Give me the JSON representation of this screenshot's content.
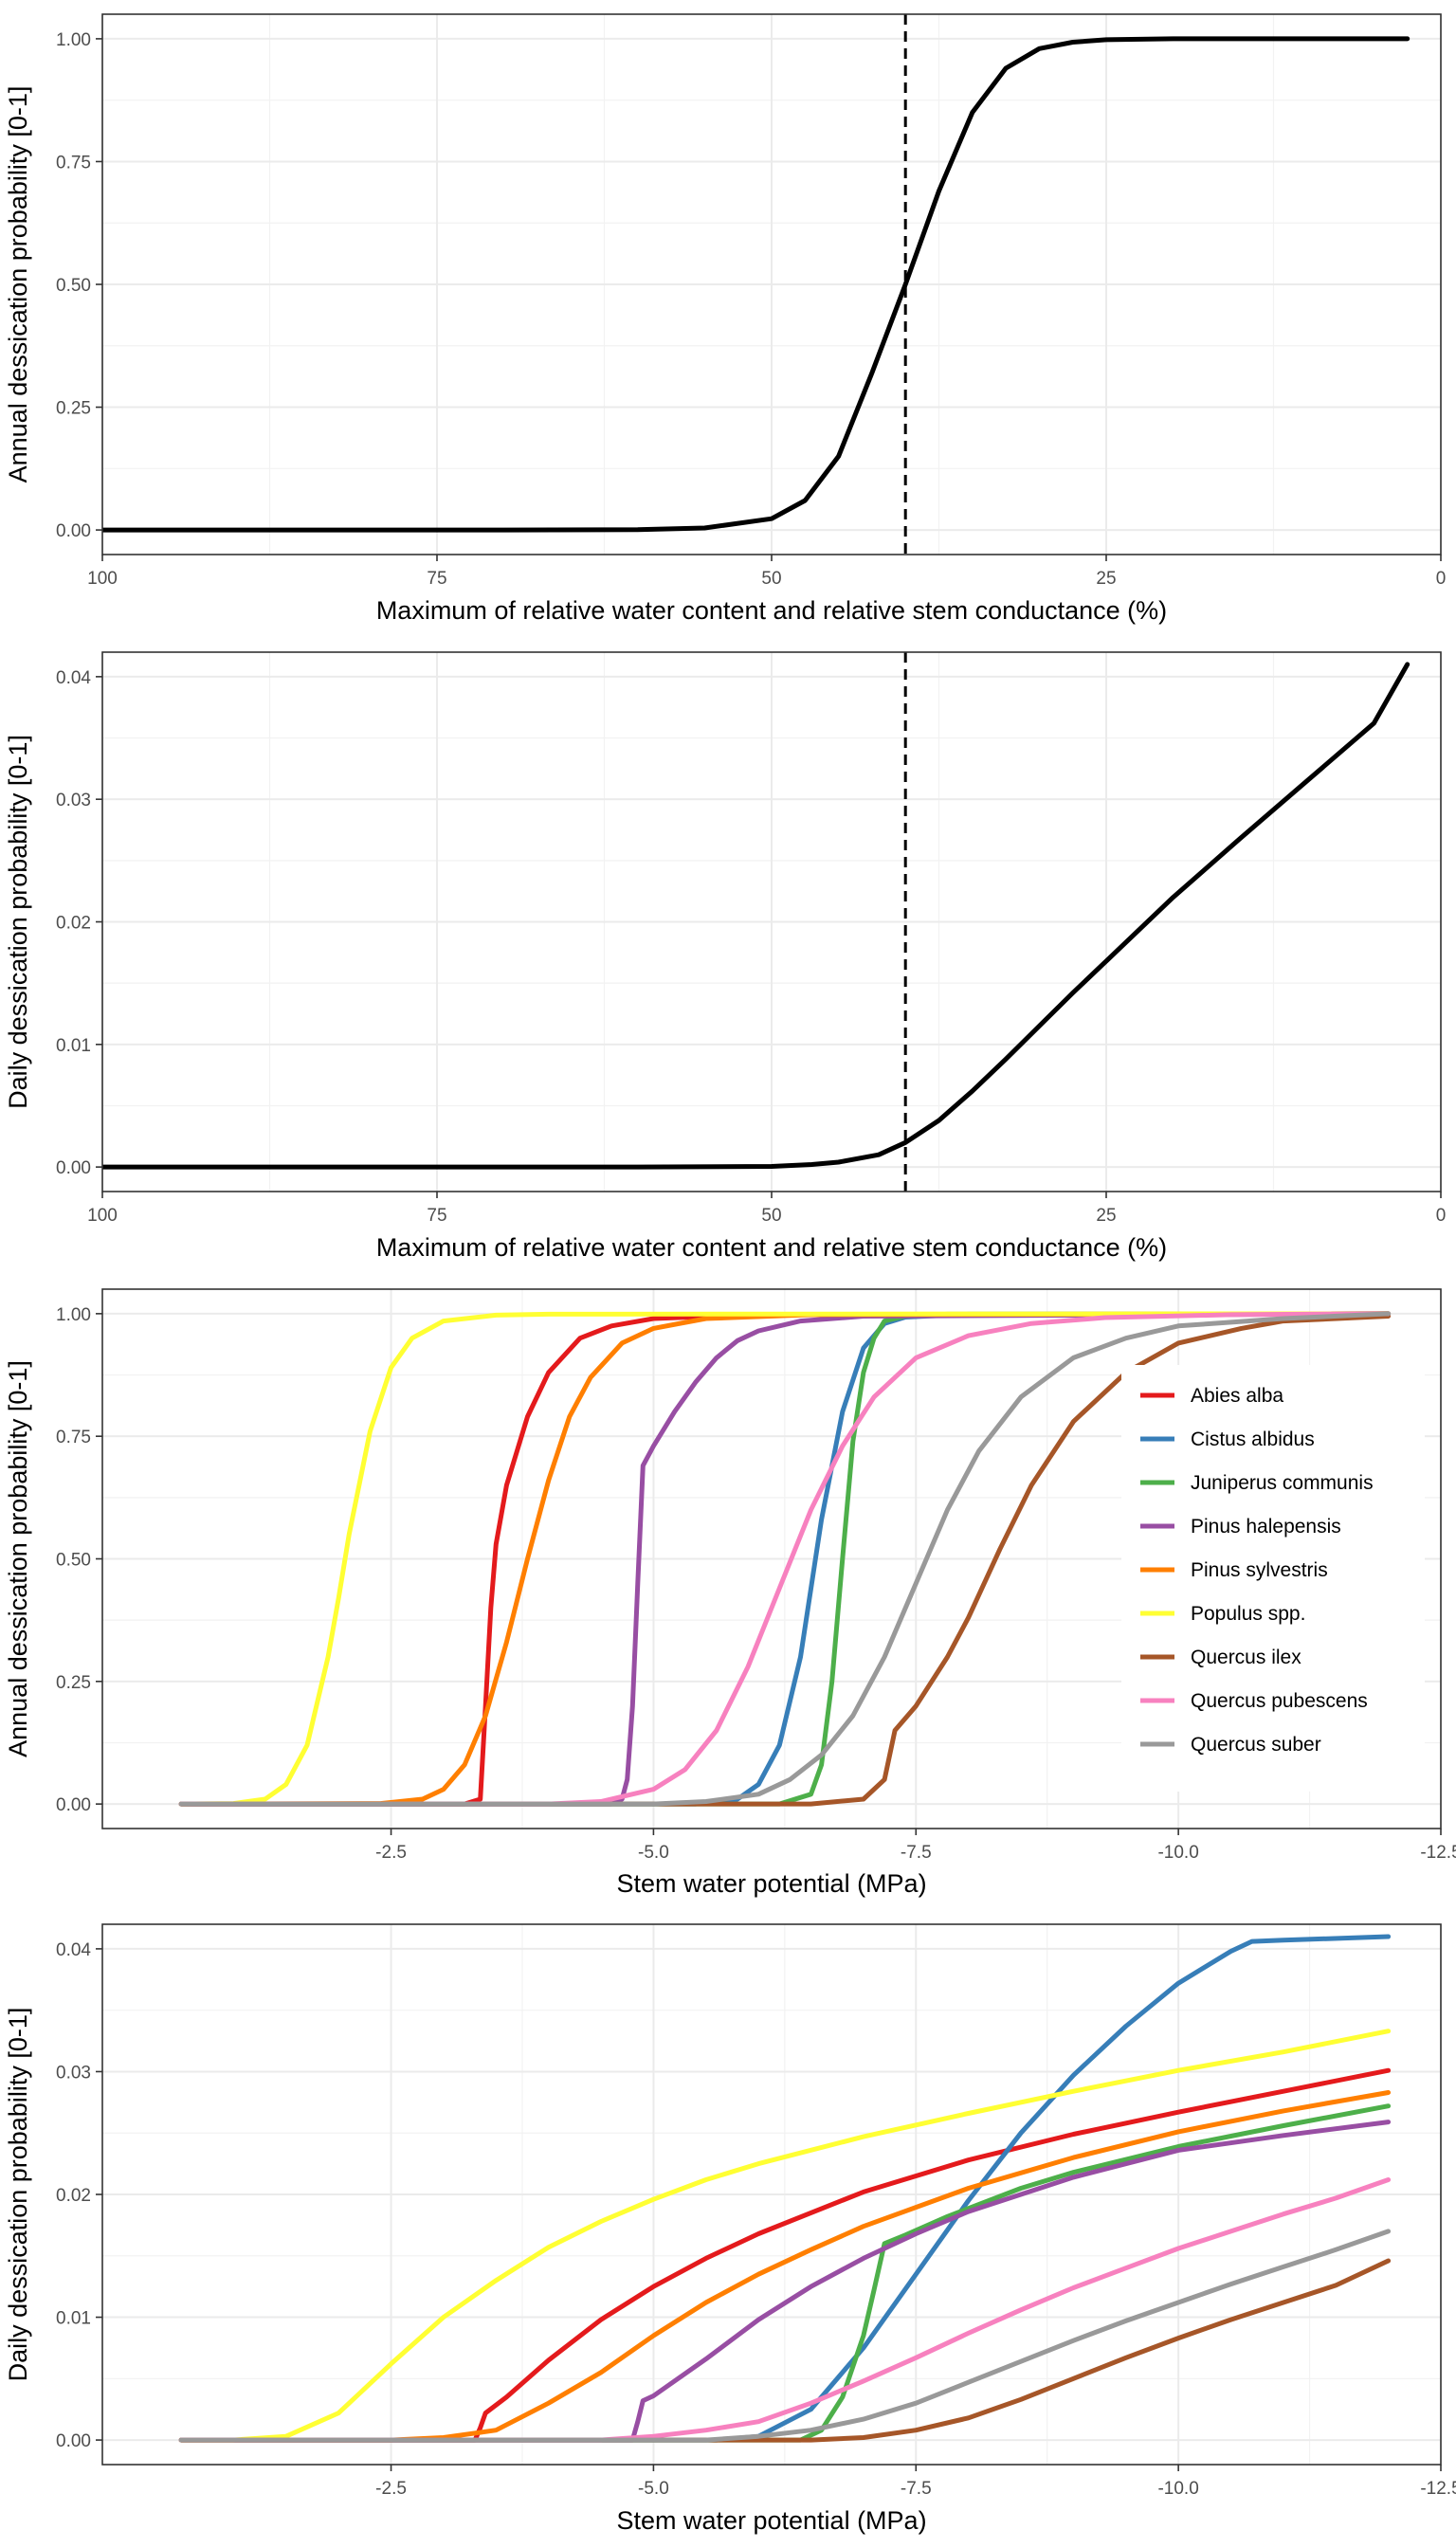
{
  "chart_data": [
    {
      "type": "line",
      "panel": "A",
      "xlabel": "Maximum of relative water content and relative stem conductance (%)",
      "ylabel": "Annual dessication probability [0-1]",
      "x_reversed": true,
      "xlim": [
        100,
        0
      ],
      "ylim": [
        0,
        1
      ],
      "x_ticks": [
        100,
        75,
        50,
        25,
        0
      ],
      "x_tick_labels": [
        "100",
        "75",
        "50",
        "25",
        "0"
      ],
      "y_ticks": [
        0,
        0.25,
        0.5,
        0.75,
        1
      ],
      "y_tick_labels": [
        "0.00",
        "0.25",
        "0.50",
        "0.75",
        "1.00"
      ],
      "grid": true,
      "vline": {
        "x": 40,
        "style": "dashed"
      },
      "series": [
        {
          "color": "#000000",
          "x": [
            100,
            70,
            60,
            55,
            50,
            47.5,
            45,
            42.5,
            40,
            37.5,
            35,
            32.5,
            30,
            27.5,
            25,
            20,
            10,
            2.5
          ],
          "y": [
            0,
            0,
            0.0005,
            0.004,
            0.023,
            0.06,
            0.15,
            0.32,
            0.5,
            0.69,
            0.85,
            0.94,
            0.98,
            0.993,
            0.998,
            1,
            1,
            1
          ]
        }
      ]
    },
    {
      "type": "line",
      "panel": "B",
      "xlabel": "Maximum of relative water content and relative stem conductance  (%)",
      "ylabel": "Daily dessication probability [0-1]",
      "x_reversed": true,
      "xlim": [
        100,
        0
      ],
      "ylim": [
        0,
        0.04
      ],
      "x_ticks": [
        100,
        75,
        50,
        25,
        0
      ],
      "x_tick_labels": [
        "100",
        "75",
        "50",
        "25",
        "0"
      ],
      "y_ticks": [
        0,
        0.01,
        0.02,
        0.03,
        0.04
      ],
      "y_tick_labels": [
        "0.00",
        "0.01",
        "0.02",
        "0.03",
        "0.04"
      ],
      "grid": true,
      "vline": {
        "x": 40,
        "style": "dashed"
      },
      "series": [
        {
          "color": "#000000",
          "x": [
            100,
            60,
            50,
            47,
            45,
            42,
            40,
            37.5,
            35,
            32.5,
            30,
            27.5,
            25,
            20,
            15,
            10,
            5,
            2.5
          ],
          "y": [
            0,
            0,
            5e-05,
            0.0002,
            0.0004,
            0.001,
            0.002,
            0.0038,
            0.0062,
            0.0088,
            0.0115,
            0.0142,
            0.0168,
            0.022,
            0.0268,
            0.0315,
            0.0362,
            0.041
          ]
        }
      ]
    },
    {
      "type": "line",
      "panel": "C",
      "xlabel": "Stem water potential (MPa)",
      "ylabel": "Annual dessication probability [0-1]",
      "x_reversed": true,
      "xlim": [
        0.25,
        -12.5
      ],
      "ylim": [
        0,
        1
      ],
      "x_ticks": [
        -2.5,
        -5,
        -7.5,
        -10,
        -12.5
      ],
      "x_tick_labels": [
        "-2.5",
        "-5.0",
        "-7.5",
        "-10.0",
        "-12.5"
      ],
      "y_ticks": [
        0,
        0.25,
        0.5,
        0.75,
        1
      ],
      "y_tick_labels": [
        "0.00",
        "0.25",
        "0.50",
        "0.75",
        "1.00"
      ],
      "grid": true,
      "legend": "right",
      "series": [
        {
          "name": "Abies alba",
          "color": "#E41A1C",
          "x": [
            -0.5,
            -3.2,
            -3.35,
            -3.4,
            -3.45,
            -3.5,
            -3.6,
            -3.8,
            -4.0,
            -4.3,
            -4.6,
            -5.0,
            -6.0,
            -12
          ],
          "y": [
            0,
            0,
            0.01,
            0.2,
            0.4,
            0.53,
            0.65,
            0.79,
            0.88,
            0.95,
            0.975,
            0.99,
            0.998,
            1
          ]
        },
        {
          "name": "Cistus albidus",
          "color": "#377EB8",
          "x": [
            -0.5,
            -5.4,
            -5.8,
            -6.0,
            -6.2,
            -6.4,
            -6.6,
            -6.8,
            -7.0,
            -7.2,
            -7.4,
            -8.0,
            -12
          ],
          "y": [
            0,
            0,
            0.01,
            0.04,
            0.12,
            0.3,
            0.58,
            0.8,
            0.93,
            0.98,
            0.993,
            0.999,
            1
          ]
        },
        {
          "name": "Juniperus communis",
          "color": "#4DAF4A",
          "x": [
            -0.5,
            -6.2,
            -6.5,
            -6.6,
            -6.7,
            -6.8,
            -6.9,
            -7.0,
            -7.1,
            -7.2,
            -7.4,
            -7.8,
            -12
          ],
          "y": [
            0,
            0,
            0.02,
            0.08,
            0.25,
            0.5,
            0.74,
            0.88,
            0.95,
            0.985,
            0.995,
            0.999,
            1
          ]
        },
        {
          "name": "Pinus halepensis",
          "color": "#984EA3",
          "x": [
            -0.5,
            -4.6,
            -4.7,
            -4.75,
            -4.8,
            -4.85,
            -4.9,
            -5.0,
            -5.2,
            -5.4,
            -5.6,
            -5.8,
            -6.0,
            -6.4,
            -7.0,
            -12
          ],
          "y": [
            0,
            0,
            0.01,
            0.05,
            0.2,
            0.45,
            0.69,
            0.73,
            0.8,
            0.86,
            0.91,
            0.945,
            0.965,
            0.985,
            0.995,
            1
          ]
        },
        {
          "name": "Pinus sylvestris",
          "color": "#FF7F00",
          "x": [
            -0.5,
            -2.4,
            -2.8,
            -3.0,
            -3.2,
            -3.4,
            -3.6,
            -3.8,
            -4.0,
            -4.2,
            -4.4,
            -4.7,
            -5.0,
            -5.5,
            -6.5,
            -12
          ],
          "y": [
            0,
            0.001,
            0.01,
            0.03,
            0.08,
            0.18,
            0.33,
            0.5,
            0.66,
            0.79,
            0.87,
            0.94,
            0.97,
            0.99,
            0.998,
            1
          ]
        },
        {
          "name": "Populus spp.",
          "color": "#FFFF33",
          "x": [
            -0.5,
            -1.0,
            -1.3,
            -1.5,
            -1.7,
            -1.9,
            -2.0,
            -2.1,
            -2.3,
            -2.5,
            -2.7,
            -3.0,
            -3.5,
            -4.0,
            -12
          ],
          "y": [
            0,
            0.001,
            0.01,
            0.04,
            0.12,
            0.3,
            0.42,
            0.55,
            0.76,
            0.89,
            0.95,
            0.985,
            0.997,
            0.999,
            1
          ]
        },
        {
          "name": "Quercus ilex",
          "color": "#A65628",
          "x": [
            -0.5,
            -6.5,
            -7.0,
            -7.2,
            -7.3,
            -7.5,
            -7.8,
            -8.0,
            -8.3,
            -8.6,
            -9.0,
            -9.5,
            -10.0,
            -10.6,
            -11.0,
            -12
          ],
          "y": [
            0,
            0,
            0.01,
            0.05,
            0.15,
            0.2,
            0.3,
            0.38,
            0.52,
            0.65,
            0.78,
            0.88,
            0.94,
            0.97,
            0.985,
            0.995
          ]
        },
        {
          "name": "Quercus pubescens",
          "color": "#F781BF",
          "x": [
            -0.5,
            -4.0,
            -4.5,
            -5.0,
            -5.3,
            -5.6,
            -5.9,
            -6.2,
            -6.5,
            -6.8,
            -7.1,
            -7.5,
            -8.0,
            -8.6,
            -9.3,
            -10.5,
            -12
          ],
          "y": [
            0,
            0,
            0.005,
            0.03,
            0.07,
            0.15,
            0.28,
            0.44,
            0.6,
            0.73,
            0.83,
            0.91,
            0.955,
            0.98,
            0.992,
            0.998,
            1
          ]
        },
        {
          "name": "Quercus suber",
          "color": "#999999",
          "x": [
            -0.5,
            -5.0,
            -5.5,
            -6.0,
            -6.3,
            -6.6,
            -6.9,
            -7.2,
            -7.5,
            -7.8,
            -8.1,
            -8.5,
            -9.0,
            -9.5,
            -10.0,
            -11.0,
            -12
          ],
          "y": [
            0,
            0,
            0.005,
            0.02,
            0.05,
            0.1,
            0.18,
            0.3,
            0.45,
            0.6,
            0.72,
            0.83,
            0.91,
            0.95,
            0.975,
            0.99,
            1
          ]
        }
      ]
    },
    {
      "type": "line",
      "panel": "D",
      "xlabel": "Stem water potential (MPa)",
      "ylabel": "Daily dessication probability [0-1]",
      "x_reversed": true,
      "xlim": [
        0.25,
        -12.5
      ],
      "ylim": [
        0,
        0.04
      ],
      "x_ticks": [
        -2.5,
        -5,
        -7.5,
        -10,
        -12.5
      ],
      "x_tick_labels": [
        "-2.5",
        "-5.0",
        "-7.5",
        "-10.0",
        "-12.5"
      ],
      "y_ticks": [
        0,
        0.01,
        0.02,
        0.03,
        0.04
      ],
      "y_tick_labels": [
        "0.00",
        "0.01",
        "0.02",
        "0.03",
        "0.04"
      ],
      "grid": true,
      "series": [
        {
          "name": "Abies alba",
          "color": "#E41A1C",
          "x": [
            -0.5,
            -3.3,
            -3.35,
            -3.4,
            -3.6,
            -4.0,
            -4.5,
            -5.0,
            -5.5,
            -6.0,
            -7.0,
            -8.0,
            -9.0,
            -10.0,
            -11.0,
            -12.0
          ],
          "y": [
            0,
            0,
            0.001,
            0.0022,
            0.0035,
            0.0065,
            0.0098,
            0.0125,
            0.0148,
            0.0168,
            0.0202,
            0.0228,
            0.0249,
            0.0267,
            0.0284,
            0.0301
          ]
        },
        {
          "name": "Cistus albidus",
          "color": "#377EB8",
          "x": [
            -0.5,
            -5.6,
            -6.0,
            -6.5,
            -7.0,
            -7.5,
            -8.0,
            -8.5,
            -9.0,
            -9.5,
            -10.0,
            -10.5,
            -10.7,
            -11.0,
            -12.0
          ],
          "y": [
            0,
            0,
            0.0003,
            0.0025,
            0.0075,
            0.0135,
            0.0195,
            0.025,
            0.0297,
            0.0337,
            0.0372,
            0.0398,
            0.0406,
            0.0407,
            0.041
          ]
        },
        {
          "name": "Juniperus communis",
          "color": "#4DAF4A",
          "x": [
            -0.5,
            -6.4,
            -6.6,
            -6.8,
            -7.0,
            -7.1,
            -7.2,
            -7.4,
            -7.8,
            -8.5,
            -9.0,
            -10.0,
            -11.0,
            -12.0
          ],
          "y": [
            0,
            0,
            0.0008,
            0.0035,
            0.0085,
            0.0122,
            0.016,
            0.0167,
            0.0182,
            0.0205,
            0.0218,
            0.0239,
            0.0256,
            0.0272
          ]
        },
        {
          "name": "Pinus halepensis",
          "color": "#984EA3",
          "x": [
            -0.5,
            -4.8,
            -4.85,
            -4.9,
            -5.0,
            -5.5,
            -6.0,
            -6.5,
            -7.0,
            -7.5,
            -8.0,
            -9.0,
            -10.0,
            -11.0,
            -12.0
          ],
          "y": [
            0,
            0,
            0.0015,
            0.0032,
            0.0036,
            0.0066,
            0.0098,
            0.0125,
            0.0148,
            0.0168,
            0.0186,
            0.0214,
            0.0236,
            0.0248,
            0.0259
          ]
        },
        {
          "name": "Pinus sylvestris",
          "color": "#FF7F00",
          "x": [
            -0.5,
            -2.5,
            -3.0,
            -3.5,
            -4.0,
            -4.5,
            -5.0,
            -5.5,
            -6.0,
            -6.5,
            -7.0,
            -8.0,
            -9.0,
            -10.0,
            -11.0,
            -12.0
          ],
          "y": [
            0,
            0,
            0.0002,
            0.0008,
            0.003,
            0.0055,
            0.0085,
            0.0112,
            0.0135,
            0.0155,
            0.0174,
            0.0205,
            0.023,
            0.0251,
            0.0268,
            0.0283
          ]
        },
        {
          "name": "Populus spp.",
          "color": "#FFFF33",
          "x": [
            -0.5,
            -1.0,
            -1.5,
            -2.0,
            -2.5,
            -3.0,
            -3.5,
            -4.0,
            -4.5,
            -5.0,
            -5.5,
            -6.0,
            -7.0,
            -8.0,
            -9.0,
            -10.0,
            -11.0,
            -12.0
          ],
          "y": [
            0,
            0,
            0.0003,
            0.0022,
            0.0062,
            0.01,
            0.013,
            0.0157,
            0.0178,
            0.0196,
            0.0212,
            0.0225,
            0.0247,
            0.0266,
            0.0284,
            0.0301,
            0.0316,
            0.0333
          ]
        },
        {
          "name": "Quercus ilex",
          "color": "#A65628",
          "x": [
            -0.5,
            -6.5,
            -7.0,
            -7.5,
            -8.0,
            -8.5,
            -9.0,
            -9.5,
            -10.0,
            -10.5,
            -11.0,
            -11.5,
            -12.0
          ],
          "y": [
            0,
            0,
            0.0002,
            0.0008,
            0.0018,
            0.0033,
            0.005,
            0.0067,
            0.0083,
            0.0098,
            0.0112,
            0.0126,
            0.0146
          ]
        },
        {
          "name": "Quercus pubescens",
          "color": "#F781BF",
          "x": [
            -0.5,
            -4.5,
            -5.0,
            -5.5,
            -6.0,
            -6.5,
            -7.0,
            -7.5,
            -8.0,
            -8.5,
            -9.0,
            -9.5,
            -10.0,
            -10.5,
            -11.0,
            -11.5,
            -12.0
          ],
          "y": [
            0,
            0,
            0.0003,
            0.0008,
            0.0015,
            0.003,
            0.0048,
            0.0067,
            0.0087,
            0.0106,
            0.0124,
            0.014,
            0.0156,
            0.017,
            0.0184,
            0.0197,
            0.0212
          ]
        },
        {
          "name": "Quercus suber",
          "color": "#999999",
          "x": [
            -0.5,
            -5.5,
            -6.0,
            -6.5,
            -7.0,
            -7.5,
            -8.0,
            -8.5,
            -9.0,
            -9.5,
            -10.0,
            -10.5,
            -11.0,
            -11.5,
            -12.0
          ],
          "y": [
            0,
            0,
            0.0003,
            0.0008,
            0.0017,
            0.003,
            0.0047,
            0.0064,
            0.0081,
            0.0097,
            0.0112,
            0.0127,
            0.0141,
            0.0155,
            0.017
          ]
        }
      ]
    }
  ]
}
